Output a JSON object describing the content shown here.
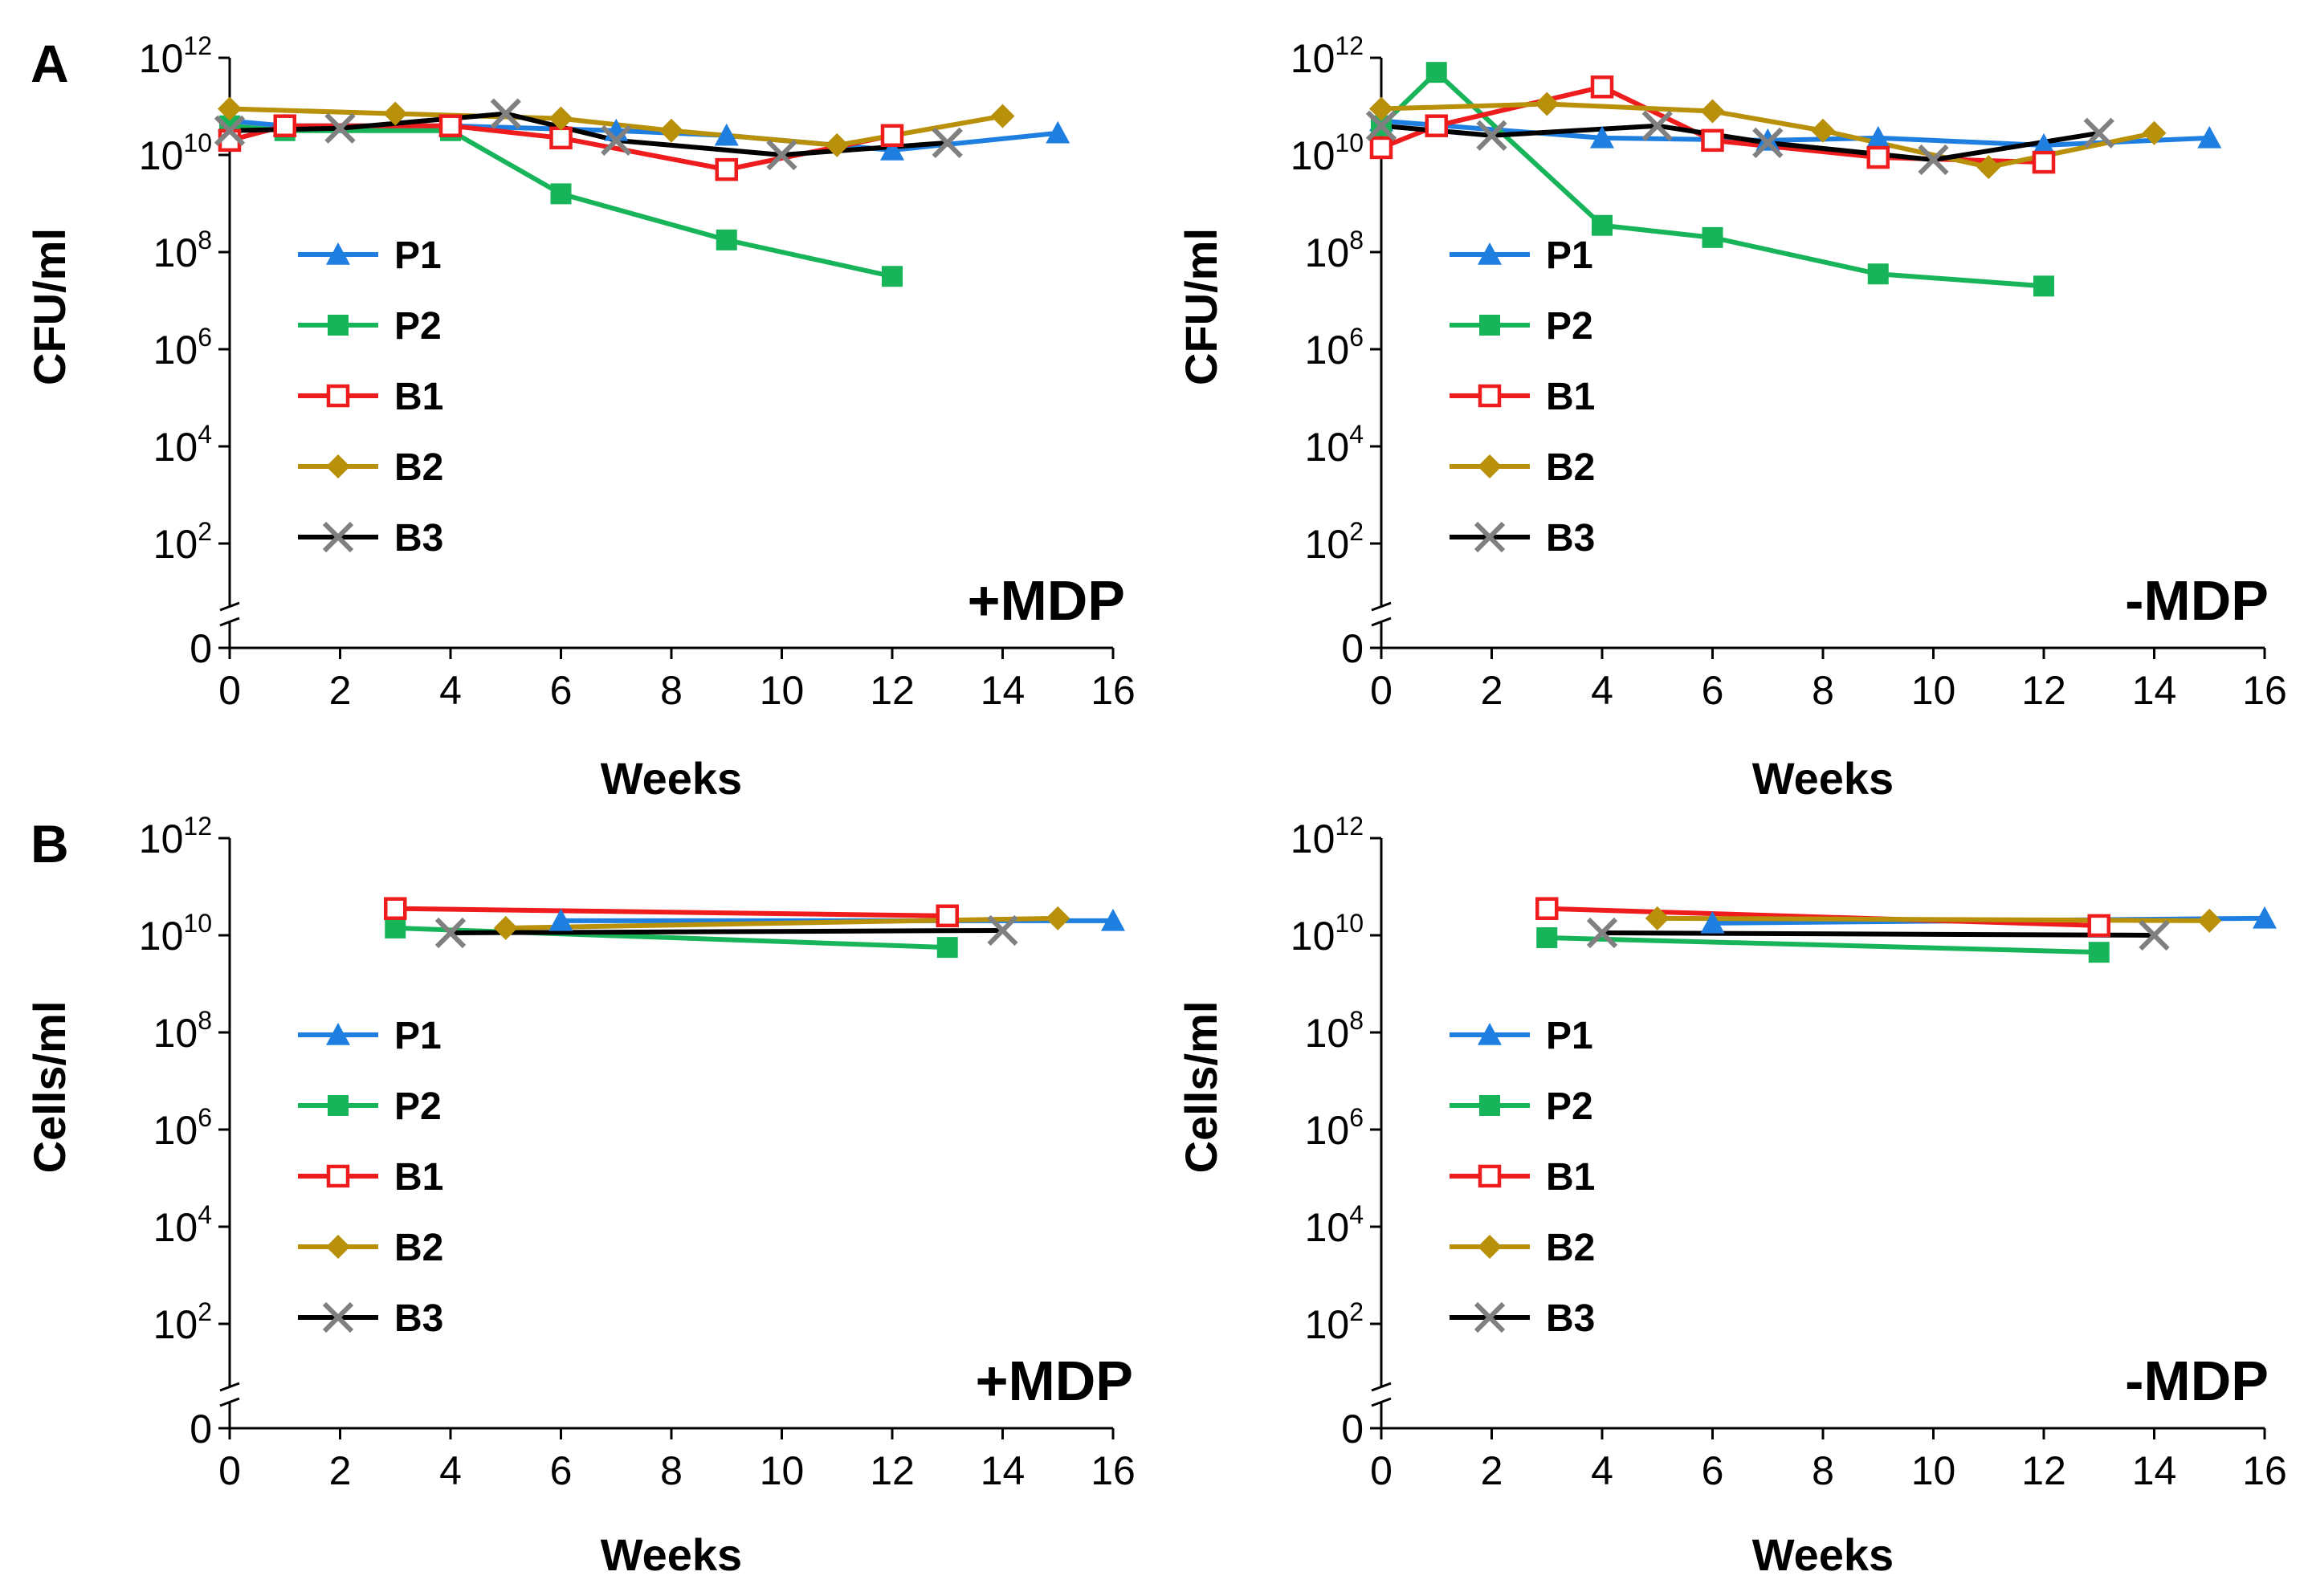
{
  "colors": {
    "P1": "#1f7fe0",
    "P2": "#18b45a",
    "B1": "#ee1c1c",
    "B2": "#b8900a",
    "B3_line": "#000000",
    "B3_marker": "#808080",
    "axis": "#000000"
  },
  "legend": [
    {
      "name": "P1",
      "marker": "triangle"
    },
    {
      "name": "P2",
      "marker": "square"
    },
    {
      "name": "B1",
      "marker": "open-square"
    },
    {
      "name": "B2",
      "marker": "diamond"
    },
    {
      "name": "B3",
      "marker": "x"
    }
  ],
  "chart_data": [
    {
      "type": "line",
      "panel": "A",
      "corner_label": "+MDP",
      "xlabel": "Weeks",
      "ylabel": "CFU/ml",
      "xlim": [
        0,
        16
      ],
      "xticks": [
        "0",
        "2",
        "4",
        "6",
        "8",
        "10",
        "12",
        "14",
        "16"
      ],
      "yscale": "log10 with axis break to 0",
      "ylim_log10": [
        2,
        12
      ],
      "yticks": [
        {
          "base": "0",
          "exp": ""
        },
        {
          "base": "10",
          "exp": "2"
        },
        {
          "base": "10",
          "exp": "4"
        },
        {
          "base": "10",
          "exp": "6"
        },
        {
          "base": "10",
          "exp": "8"
        },
        {
          "base": "10",
          "exp": "10"
        },
        {
          "base": "10",
          "exp": "12"
        }
      ],
      "series": [
        {
          "name": "P1",
          "x": [
            0,
            1,
            4,
            7,
            9,
            12,
            15
          ],
          "log10_y": [
            10.7,
            10.6,
            10.6,
            10.5,
            10.4,
            10.1,
            10.45
          ]
        },
        {
          "name": "P2",
          "x": [
            0,
            1,
            4,
            6,
            9,
            12
          ],
          "log10_y": [
            10.6,
            10.5,
            10.5,
            9.2,
            8.25,
            7.5
          ]
        },
        {
          "name": "B1",
          "x": [
            0,
            1,
            4,
            6,
            9,
            12
          ],
          "log10_y": [
            10.3,
            10.6,
            10.6,
            10.35,
            9.7,
            10.4
          ]
        },
        {
          "name": "B2",
          "x": [
            0,
            3,
            6,
            8,
            11,
            14
          ],
          "log10_y": [
            10.95,
            10.85,
            10.75,
            10.5,
            10.2,
            10.8
          ]
        },
        {
          "name": "B3",
          "x": [
            0,
            2,
            5,
            7,
            10,
            13
          ],
          "log10_y": [
            10.5,
            10.55,
            10.85,
            10.3,
            10.0,
            10.25
          ]
        }
      ]
    },
    {
      "type": "line",
      "panel": "",
      "corner_label": "-MDP",
      "xlabel": "Weeks",
      "ylabel": "CFU/ml",
      "xlim": [
        0,
        16
      ],
      "xticks": [
        "0",
        "2",
        "4",
        "6",
        "8",
        "10",
        "12",
        "14",
        "16"
      ],
      "yscale": "log10 with axis break to 0",
      "ylim_log10": [
        2,
        12
      ],
      "yticks": [
        {
          "base": "0",
          "exp": ""
        },
        {
          "base": "10",
          "exp": "2"
        },
        {
          "base": "10",
          "exp": "4"
        },
        {
          "base": "10",
          "exp": "6"
        },
        {
          "base": "10",
          "exp": "8"
        },
        {
          "base": "10",
          "exp": "10"
        },
        {
          "base": "10",
          "exp": "12"
        }
      ],
      "series": [
        {
          "name": "P1",
          "x": [
            0,
            4,
            7,
            9,
            12,
            15
          ],
          "log10_y": [
            10.7,
            10.35,
            10.3,
            10.35,
            10.2,
            10.35
          ]
        },
        {
          "name": "P2",
          "x": [
            0,
            1,
            4,
            6,
            9,
            12
          ],
          "log10_y": [
            10.6,
            11.7,
            8.55,
            8.3,
            7.55,
            7.3
          ]
        },
        {
          "name": "B1",
          "x": [
            0,
            1,
            4,
            6,
            9,
            12
          ],
          "log10_y": [
            10.15,
            10.6,
            11.4,
            10.3,
            9.95,
            9.85
          ]
        },
        {
          "name": "B2",
          "x": [
            0,
            3,
            6,
            8,
            11,
            14
          ],
          "log10_y": [
            10.95,
            11.05,
            10.9,
            10.5,
            9.75,
            10.45
          ]
        },
        {
          "name": "B3",
          "x": [
            0,
            2,
            5,
            7,
            10,
            13
          ],
          "log10_y": [
            10.6,
            10.4,
            10.6,
            10.25,
            9.9,
            10.45
          ]
        }
      ]
    },
    {
      "type": "line",
      "panel": "B",
      "corner_label": "+MDP",
      "xlabel": "Weeks",
      "ylabel": "Cells/ml",
      "xlim": [
        0,
        16
      ],
      "xticks": [
        "0",
        "2",
        "4",
        "6",
        "8",
        "10",
        "12",
        "14",
        "16"
      ],
      "yscale": "log10 with axis break to 0",
      "ylim_log10": [
        2,
        12
      ],
      "yticks": [
        {
          "base": "0",
          "exp": ""
        },
        {
          "base": "10",
          "exp": "2"
        },
        {
          "base": "10",
          "exp": "4"
        },
        {
          "base": "10",
          "exp": "6"
        },
        {
          "base": "10",
          "exp": "8"
        },
        {
          "base": "10",
          "exp": "10"
        },
        {
          "base": "10",
          "exp": "12"
        }
      ],
      "series": [
        {
          "name": "P1",
          "x": [
            6,
            16
          ],
          "log10_y": [
            10.3,
            10.3
          ]
        },
        {
          "name": "P2",
          "x": [
            3,
            13
          ],
          "log10_y": [
            10.15,
            9.75
          ]
        },
        {
          "name": "B1",
          "x": [
            3,
            13
          ],
          "log10_y": [
            10.55,
            10.4
          ]
        },
        {
          "name": "B2",
          "x": [
            5,
            15
          ],
          "log10_y": [
            10.15,
            10.35
          ]
        },
        {
          "name": "B3",
          "x": [
            4,
            14
          ],
          "log10_y": [
            10.05,
            10.1
          ]
        }
      ]
    },
    {
      "type": "line",
      "panel": "",
      "corner_label": "-MDP",
      "xlabel": "Weeks",
      "ylabel": "Cells/ml",
      "xlim": [
        0,
        16
      ],
      "xticks": [
        "0",
        "2",
        "4",
        "6",
        "8",
        "10",
        "12",
        "14",
        "16"
      ],
      "yscale": "log10 with axis break to 0",
      "ylim_log10": [
        2,
        12
      ],
      "yticks": [
        {
          "base": "0",
          "exp": ""
        },
        {
          "base": "10",
          "exp": "2"
        },
        {
          "base": "10",
          "exp": "4"
        },
        {
          "base": "10",
          "exp": "6"
        },
        {
          "base": "10",
          "exp": "8"
        },
        {
          "base": "10",
          "exp": "10"
        },
        {
          "base": "10",
          "exp": "12"
        }
      ],
      "series": [
        {
          "name": "P1",
          "x": [
            6,
            16
          ],
          "log10_y": [
            10.25,
            10.35
          ]
        },
        {
          "name": "P2",
          "x": [
            3,
            13
          ],
          "log10_y": [
            9.95,
            9.65
          ]
        },
        {
          "name": "B1",
          "x": [
            3,
            13
          ],
          "log10_y": [
            10.55,
            10.2
          ]
        },
        {
          "name": "B2",
          "x": [
            5,
            15
          ],
          "log10_y": [
            10.35,
            10.3
          ]
        },
        {
          "name": "B3",
          "x": [
            4,
            14
          ],
          "log10_y": [
            10.05,
            10.0
          ]
        }
      ]
    }
  ]
}
